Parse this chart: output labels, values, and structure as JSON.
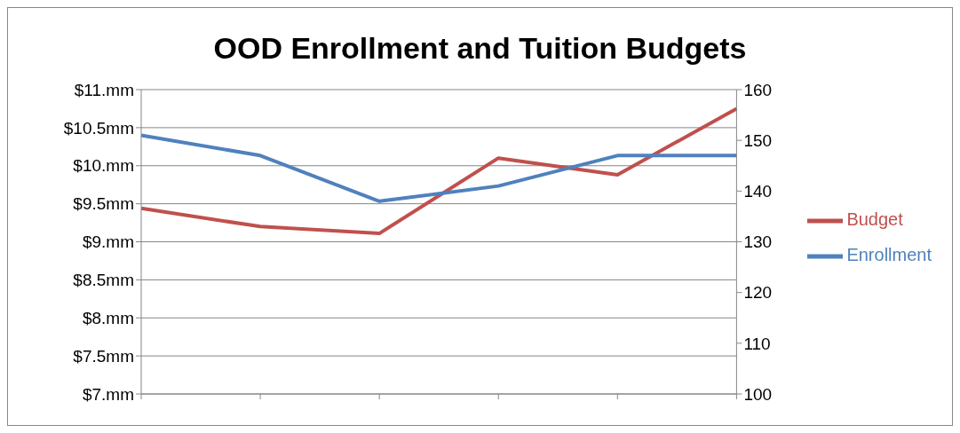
{
  "chart_data": {
    "type": "line",
    "title": "OOD Enrollment and Tuition Budgets",
    "categories": [
      null,
      null,
      null,
      null,
      null,
      null
    ],
    "series": [
      {
        "name": "Budget",
        "color": "#c0504d",
        "values": [
          9.44,
          9.2,
          9.11,
          10.1,
          9.88,
          10.75
        ]
      },
      {
        "name": "Enrollment",
        "color": "#4f81bd",
        "values": [
          151,
          147,
          138,
          141,
          147,
          147
        ],
        "axis": "y2"
      }
    ],
    "ylim": [
      7,
      11
    ],
    "yticks": [
      {
        "value": 7,
        "label": "$7.mm"
      },
      {
        "value": 7.5,
        "label": "$7.5mm"
      },
      {
        "value": 8,
        "label": "$8.mm"
      },
      {
        "value": 8.5,
        "label": "$8.5mm"
      },
      {
        "value": 9,
        "label": "$9.mm"
      },
      {
        "value": 9.5,
        "label": "$9.5mm"
      },
      {
        "value": 10,
        "label": "$10.mm"
      },
      {
        "value": 10.5,
        "label": "$10.5mm"
      },
      {
        "value": 11,
        "label": "$11.mm"
      }
    ],
    "y2lim": [
      100,
      160
    ],
    "y2ticks": [
      100,
      110,
      120,
      130,
      140,
      150,
      160
    ],
    "grid": "y",
    "legend": "right",
    "marker": "none",
    "line_style": "solid"
  }
}
